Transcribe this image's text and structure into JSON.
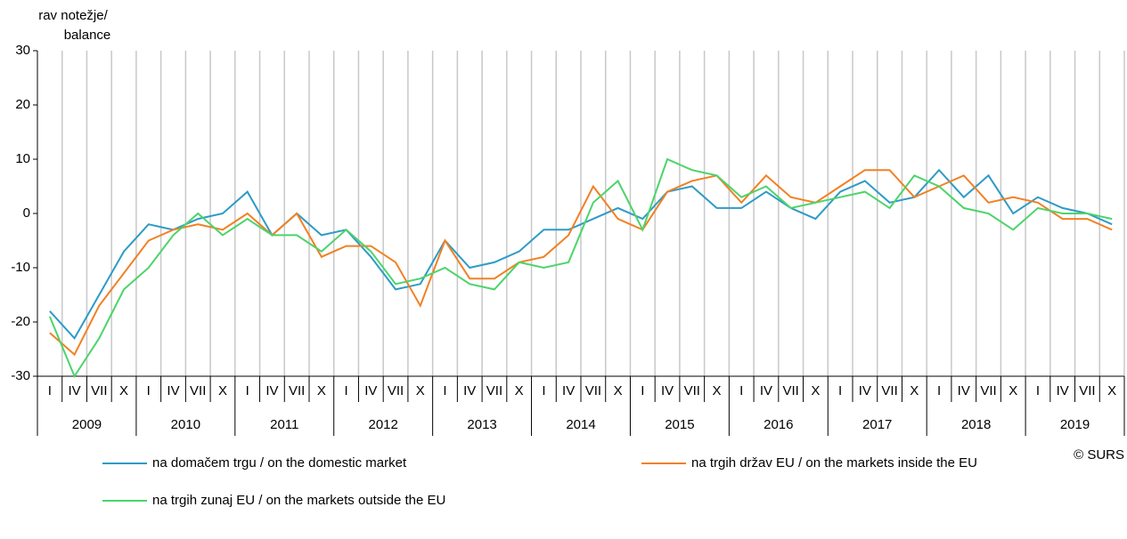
{
  "chart_data": {
    "type": "line",
    "y_label": [
      "rav notežje/",
      "balance"
    ],
    "categories": [
      "I",
      "IV",
      "VII",
      "X",
      "I",
      "IV",
      "VII",
      "X",
      "I",
      "IV",
      "VII",
      "X",
      "I",
      "IV",
      "VII",
      "X",
      "I",
      "IV",
      "VII",
      "X",
      "I",
      "IV",
      "VII",
      "X",
      "I",
      "IV",
      "VII",
      "X",
      "I",
      "IV",
      "VII",
      "X",
      "I",
      "IV",
      "VII",
      "X",
      "I",
      "IV",
      "VII",
      "X",
      "I",
      "IV",
      "VII",
      "X"
    ],
    "years": [
      "2009",
      "2010",
      "2011",
      "2012",
      "2013",
      "2014",
      "2015",
      "2016",
      "2017",
      "2018",
      "2019"
    ],
    "series": [
      {
        "name": "na domačem trgu / on the domestic market",
        "color": "#2e9bc6",
        "values": [
          -18,
          -23,
          -15,
          -7,
          -2,
          -3,
          -1,
          0,
          4,
          -4,
          0,
          -4,
          -3,
          -8,
          -14,
          -13,
          -5,
          -10,
          -9,
          -7,
          -3,
          -3,
          -1,
          1,
          -1,
          4,
          5,
          1,
          1,
          4,
          1,
          -1,
          4,
          6,
          2,
          3,
          8,
          3,
          7,
          0,
          3,
          1,
          0,
          -2
        ]
      },
      {
        "name": "na trgih držav EU / on the markets inside the EU",
        "color": "#f28024",
        "values": [
          -22,
          -26,
          -17,
          -11,
          -5,
          -3,
          -2,
          -3,
          0,
          -4,
          0,
          -8,
          -6,
          -6,
          -9,
          -17,
          -5,
          -12,
          -12,
          -9,
          -8,
          -4,
          5,
          -1,
          -3,
          4,
          6,
          7,
          2,
          7,
          3,
          2,
          5,
          8,
          8,
          3,
          5,
          7,
          2,
          3,
          2,
          -1,
          -1,
          -3
        ]
      },
      {
        "name": "na trgih zunaj EU / on the markets outside the EU",
        "color": "#4cd46a",
        "values": [
          -19,
          -30,
          -23,
          -14,
          -10,
          -4,
          0,
          -4,
          -1,
          -4,
          -4,
          -7,
          -3,
          -7,
          -13,
          -12,
          -10,
          -13,
          -14,
          -9,
          -10,
          -9,
          2,
          6,
          -3,
          10,
          8,
          7,
          3,
          5,
          1,
          2,
          3,
          4,
          1,
          7,
          5,
          1,
          0,
          -3,
          1,
          0,
          0,
          -1
        ]
      }
    ],
    "ylim": [
      -30,
      30
    ],
    "yticks": [
      -30,
      -20,
      -10,
      0,
      10,
      20,
      30
    ],
    "source": "© SURS"
  }
}
